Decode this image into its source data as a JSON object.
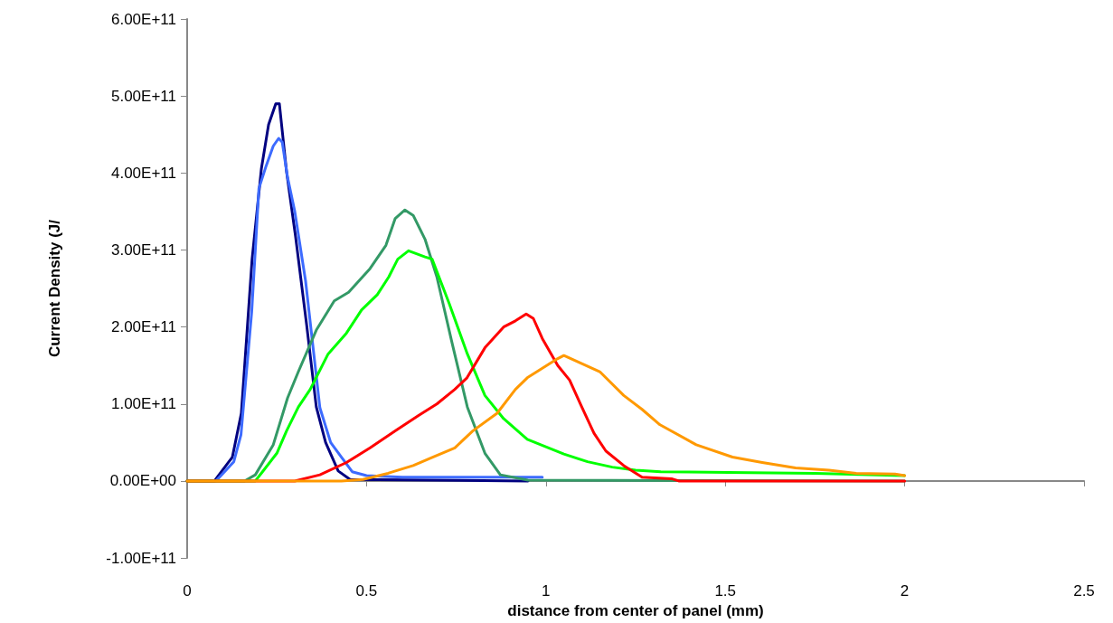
{
  "chart_data": {
    "type": "line",
    "xlabel": "distance from center of panel (mm)",
    "ylabel": "Current Density (J/",
    "xlim": [
      0,
      2.5
    ],
    "ylim": [
      -100000000000.0,
      600000000000.0
    ],
    "xticks": [
      0,
      0.5,
      1,
      1.5,
      2,
      2.5
    ],
    "yticks": [
      {
        "value": -100000000000.0,
        "label": "-1.00E+11"
      },
      {
        "value": 0,
        "label": "0.00E+00"
      },
      {
        "value": 100000000000.0,
        "label": "1.00E+11"
      },
      {
        "value": 200000000000.0,
        "label": "2.00E+11"
      },
      {
        "value": 300000000000.0,
        "label": "3.00E+11"
      },
      {
        "value": 400000000000.0,
        "label": "4.00E+11"
      },
      {
        "value": 500000000000.0,
        "label": "5.00E+11"
      },
      {
        "value": 600000000000.0,
        "label": "6.00E+11"
      }
    ],
    "marker": "none",
    "line_style": "solid",
    "series": [
      {
        "color": "#000080",
        "x": [
          0,
          0.076,
          0.126,
          0.151,
          0.181,
          0.207,
          0.227,
          0.247,
          0.257,
          0.277,
          0.302,
          0.333,
          0.36,
          0.386,
          0.421,
          0.454,
          0.95
        ],
        "values": [
          0,
          0,
          31000000000.0,
          88000000000.0,
          288000000000.0,
          406000000000.0,
          463000000000.0,
          490000000000.0,
          490000000000.0,
          402000000000.0,
          318000000000.0,
          203000000000.0,
          96000000000.0,
          50000000000.0,
          13000000000.0,
          2000000000.0,
          0
        ]
      },
      {
        "color": "#3d6bff",
        "x": [
          0,
          0.08,
          0.13,
          0.15,
          0.18,
          0.2,
          0.22,
          0.24,
          0.255,
          0.265,
          0.28,
          0.3,
          0.33,
          0.37,
          0.4,
          0.43,
          0.46,
          0.5,
          0.6,
          0.99
        ],
        "values": [
          0,
          0,
          25000000000.0,
          60000000000.0,
          220000000000.0,
          380000000000.0,
          409000000000.0,
          435000000000.0,
          445000000000.0,
          440000000000.0,
          394000000000.0,
          350000000000.0,
          260000000000.0,
          95000000000.0,
          50000000000.0,
          31000000000.0,
          12000000000.0,
          7000000000.0,
          5000000000.0,
          5000000000.0
        ]
      },
      {
        "color": "#339966",
        "x": [
          0,
          0.16,
          0.19,
          0.24,
          0.28,
          0.31,
          0.36,
          0.41,
          0.45,
          0.51,
          0.554,
          0.58,
          0.607,
          0.63,
          0.663,
          0.696,
          0.738,
          0.781,
          0.83,
          0.873,
          0.95,
          2.0
        ],
        "values": [
          0,
          0,
          8000000000.0,
          47000000000.0,
          108000000000.0,
          142000000000.0,
          196000000000.0,
          234000000000.0,
          245000000000.0,
          276000000000.0,
          306000000000.0,
          341000000000.0,
          352000000000.0,
          345000000000.0,
          314000000000.0,
          265000000000.0,
          180000000000.0,
          96000000000.0,
          36000000000.0,
          8000000000.0,
          1000000000.0,
          0
        ]
      },
      {
        "color": "#00ff00",
        "x": [
          0,
          0.19,
          0.21,
          0.25,
          0.277,
          0.31,
          0.343,
          0.393,
          0.444,
          0.486,
          0.53,
          0.562,
          0.587,
          0.617,
          0.663,
          0.683,
          0.73,
          0.781,
          0.83,
          0.882,
          0.948,
          1.05,
          1.116,
          1.185,
          1.25,
          1.32,
          1.51,
          1.75,
          2.0
        ],
        "values": [
          0,
          0,
          12000000000.0,
          36000000000.0,
          65000000000.0,
          96000000000.0,
          119000000000.0,
          165000000000.0,
          192000000000.0,
          222000000000.0,
          242000000000.0,
          265000000000.0,
          288000000000.0,
          299000000000.0,
          291000000000.0,
          288000000000.0,
          231000000000.0,
          165000000000.0,
          111000000000.0,
          81000000000.0,
          54000000000.0,
          35000000000.0,
          25000000000.0,
          18000000000.0,
          14000000000.0,
          12000000000.0,
          11000000000.0,
          10000000000.0,
          7000000000.0
        ]
      },
      {
        "color": "#ff0000",
        "x": [
          0,
          0.3,
          0.37,
          0.444,
          0.51,
          0.58,
          0.645,
          0.696,
          0.746,
          0.78,
          0.83,
          0.882,
          0.915,
          0.945,
          0.965,
          0.99,
          1.033,
          1.066,
          1.1,
          1.134,
          1.167,
          1.217,
          1.268,
          1.35,
          1.37,
          2.0
        ],
        "values": [
          0,
          0,
          8000000000.0,
          24000000000.0,
          43000000000.0,
          65000000000.0,
          85000000000.0,
          100000000000.0,
          119000000000.0,
          134000000000.0,
          173000000000.0,
          200000000000.0,
          208000000000.0,
          217000000000.0,
          211000000000.0,
          185000000000.0,
          150000000000.0,
          131000000000.0,
          96000000000.0,
          62000000000.0,
          39000000000.0,
          20000000000.0,
          5000000000.0,
          3000000000.0,
          0,
          0
        ]
      },
      {
        "color": "#ff9900",
        "x": [
          0,
          0.43,
          0.49,
          0.56,
          0.63,
          0.68,
          0.746,
          0.796,
          0.864,
          0.915,
          0.948,
          1.033,
          1.05,
          1.15,
          1.217,
          1.268,
          1.318,
          1.419,
          1.52,
          1.603,
          1.696,
          1.789,
          1.865,
          1.973,
          2.0
        ],
        "values": [
          0,
          0,
          2000000000.0,
          10000000000.0,
          20000000000.0,
          30000000000.0,
          43000000000.0,
          65000000000.0,
          88000000000.0,
          119000000000.0,
          134000000000.0,
          159000000000.0,
          163000000000.0,
          142000000000.0,
          111000000000.0,
          93000000000.0,
          73000000000.0,
          47000000000.0,
          31000000000.0,
          24000000000.0,
          17000000000.0,
          14000000000.0,
          10000000000.0,
          9000000000.0,
          7000000000.0
        ]
      }
    ]
  }
}
